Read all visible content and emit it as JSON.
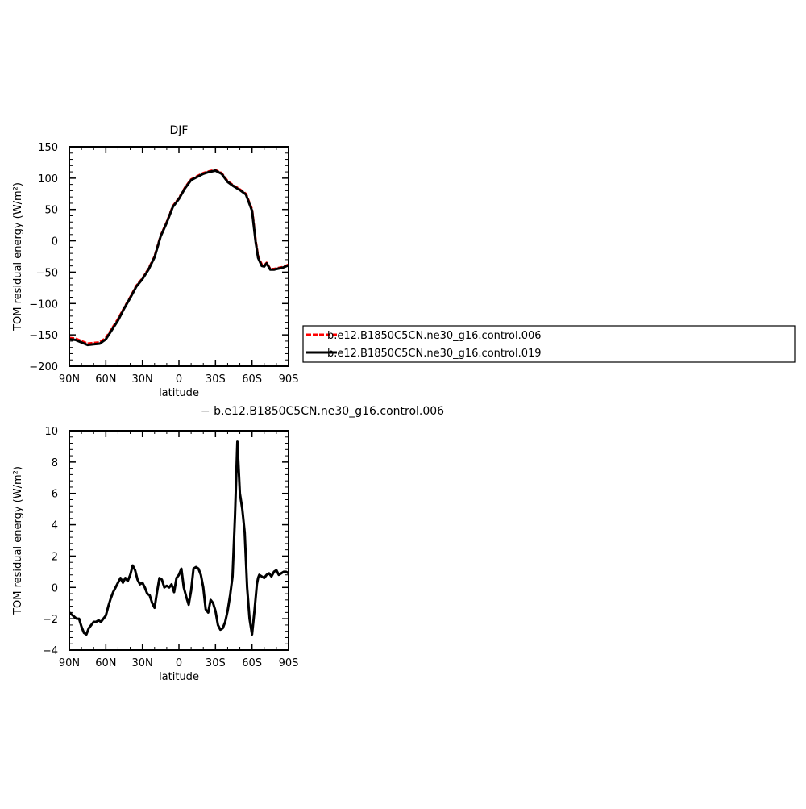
{
  "chart_data": [
    {
      "type": "line",
      "title": "DJF",
      "xlabel": "latitude",
      "ylabel": "TOM residual energy (W/m²)",
      "xlim": [
        90,
        -90
      ],
      "ylim": [
        -200,
        150
      ],
      "x_ticks": [
        90,
        60,
        30,
        0,
        -30,
        -60,
        -90
      ],
      "x_tick_labels": [
        "90N",
        "60N",
        "30N",
        "0",
        "30S",
        "60S",
        "90S"
      ],
      "y_ticks": [
        -200,
        -150,
        -100,
        -50,
        0,
        50,
        100,
        150
      ],
      "y_tick_labels": [
        "−200",
        "−150",
        "−100",
        "−50",
        "0",
        "50",
        "100",
        "150"
      ],
      "legend_position": "outside-right",
      "series": [
        {
          "name": "b.e12.B1850C5CN.ne30_g16.control.006",
          "color": "#ff0000",
          "dash": "dashed",
          "x": [
            90,
            85,
            80,
            75,
            70,
            65,
            60,
            55,
            50,
            45,
            40,
            35,
            30,
            25,
            20,
            15,
            10,
            5,
            0,
            -5,
            -10,
            -15,
            -20,
            -25,
            -30,
            -35,
            -40,
            -45,
            -50,
            -55,
            -60,
            -63,
            -65,
            -68,
            -70,
            -72,
            -75,
            -78,
            -80,
            -85,
            -90
          ],
          "y": [
            -155,
            -156,
            -160,
            -164,
            -163,
            -162,
            -155,
            -140,
            -125,
            -107,
            -90,
            -72,
            -60,
            -45,
            -25,
            8,
            30,
            55,
            68,
            85,
            98,
            103,
            108,
            111,
            113,
            108,
            95,
            88,
            82,
            75,
            50,
            0,
            -25,
            -38,
            -40,
            -35,
            -45,
            -45,
            -44,
            -42,
            -38
          ]
        },
        {
          "name": "b.e12.B1850C5CN.ne30_g16.control.019",
          "color": "#000000",
          "dash": "solid",
          "x": [
            90,
            85,
            80,
            75,
            70,
            65,
            60,
            55,
            50,
            45,
            40,
            35,
            30,
            25,
            20,
            15,
            10,
            5,
            0,
            -5,
            -10,
            -15,
            -20,
            -25,
            -30,
            -35,
            -40,
            -45,
            -50,
            -55,
            -60,
            -63,
            -65,
            -68,
            -70,
            -72,
            -75,
            -78,
            -80,
            -85,
            -90
          ],
          "y": [
            -157,
            -158,
            -162,
            -166,
            -165,
            -164,
            -157,
            -142,
            -127,
            -108,
            -91,
            -73,
            -61,
            -46,
            -26,
            7,
            29,
            54,
            67,
            84,
            97,
            102,
            107,
            110,
            112,
            107,
            94,
            87,
            81,
            74,
            48,
            -2,
            -27,
            -40,
            -41,
            -36,
            -46,
            -46,
            -45,
            -43,
            -39
          ]
        }
      ]
    },
    {
      "type": "line",
      "title": "− b.e12.B1850C5CN.ne30_g16.control.006",
      "xlabel": "latitude",
      "ylabel": "TOM residual energy (W/m²)",
      "xlim": [
        90,
        -90
      ],
      "ylim": [
        -4,
        10
      ],
      "x_ticks": [
        90,
        60,
        30,
        0,
        -30,
        -60,
        -90
      ],
      "x_tick_labels": [
        "90N",
        "60N",
        "30N",
        "0",
        "30S",
        "60S",
        "90S"
      ],
      "y_ticks": [
        -4,
        -2,
        0,
        2,
        4,
        6,
        8,
        10
      ],
      "y_tick_labels": [
        "−4",
        "−2",
        "0",
        "2",
        "4",
        "6",
        "8",
        "10"
      ],
      "series": [
        {
          "color": "#000000",
          "dash": "solid",
          "x": [
            90,
            87,
            84,
            82,
            80,
            78,
            76,
            74,
            72,
            70,
            68,
            66,
            64,
            62,
            60,
            58,
            56,
            54,
            52,
            50,
            48,
            46,
            44,
            42,
            40,
            38,
            36,
            34,
            32,
            30,
            28,
            26,
            24,
            22,
            20,
            18,
            16,
            14,
            12,
            10,
            8,
            6,
            4,
            2,
            0,
            -2,
            -4,
            -6,
            -8,
            -10,
            -12,
            -14,
            -16,
            -18,
            -20,
            -22,
            -24,
            -26,
            -28,
            -30,
            -32,
            -34,
            -36,
            -38,
            -40,
            -42,
            -44,
            -46,
            -48,
            -50,
            -52,
            -54,
            -56,
            -58,
            -60,
            -62,
            -64,
            -65,
            -66,
            -68,
            -70,
            -72,
            -74,
            -76,
            -78,
            -80,
            -82,
            -84,
            -86,
            -88,
            -90
          ],
          "y": [
            -1.6,
            -1.8,
            -2.0,
            -2.0,
            -2.5,
            -2.9,
            -3.0,
            -2.6,
            -2.4,
            -2.2,
            -2.2,
            -2.1,
            -2.2,
            -2.0,
            -1.8,
            -1.2,
            -0.7,
            -0.3,
            0.0,
            0.3,
            0.6,
            0.3,
            0.6,
            0.4,
            0.8,
            1.4,
            1.1,
            0.5,
            0.2,
            0.3,
            0.0,
            -0.4,
            -0.5,
            -1.0,
            -1.3,
            -0.3,
            0.6,
            0.5,
            0.0,
            0.1,
            0.0,
            0.2,
            -0.3,
            0.6,
            0.8,
            1.2,
            0.0,
            -0.6,
            -1.1,
            -0.2,
            1.2,
            1.3,
            1.2,
            0.8,
            0.0,
            -1.4,
            -1.6,
            -0.8,
            -1.0,
            -1.5,
            -2.4,
            -2.7,
            -2.6,
            -2.2,
            -1.5,
            -0.5,
            0.7,
            4.5,
            9.3,
            6.0,
            5.0,
            3.5,
            0.0,
            -2.0,
            -3.0,
            -1.5,
            0.2,
            0.6,
            0.8,
            0.7,
            0.6,
            0.8,
            0.9,
            0.7,
            1.0,
            1.1,
            0.8,
            0.9,
            1.0,
            1.0,
            0.9
          ]
        }
      ]
    }
  ]
}
